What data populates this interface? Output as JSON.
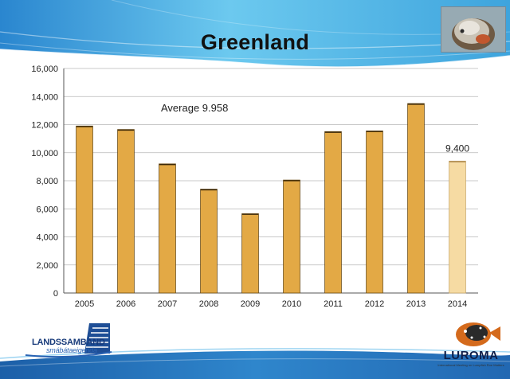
{
  "slide": {
    "title": "Greenland",
    "logo_left_top": "LANDSSAMBAND",
    "logo_left_bottom": "smábátaeigenda",
    "logo_right_word": "LUROMA",
    "logo_right_sub": "International Meeting on Lumpfish Roe Matters"
  },
  "colors": {
    "bar": "#E3A945",
    "bar_stroke": "#6b4a12",
    "bar_highlight": "#F6DBA3",
    "band_light": "#7fd0f0",
    "band_dark": "#1f6fb5",
    "grid": "#b7b7b7"
  },
  "chart_data": {
    "type": "bar",
    "title": "",
    "xlabel": "",
    "ylabel": "",
    "categories": [
      "2005",
      "2006",
      "2007",
      "2008",
      "2009",
      "2010",
      "2011",
      "2012",
      "2013",
      "2014"
    ],
    "values": [
      11900,
      11650,
      9200,
      7400,
      5650,
      8050,
      11500,
      11550,
      13500,
      9400
    ],
    "highlight_index": 9,
    "ylim": [
      0,
      16000
    ],
    "y_ticks": [
      0,
      2000,
      4000,
      6000,
      8000,
      10000,
      12000,
      14000,
      16000
    ],
    "y_tick_labels": [
      "0",
      "2,000",
      "4,000",
      "6,000",
      "8,000",
      "10,000",
      "12,000",
      "14,000",
      "16,000"
    ],
    "grid": true,
    "annotations": [
      {
        "text": "Average 9.958"
      },
      {
        "text": "9,400",
        "category": "2014"
      }
    ]
  }
}
